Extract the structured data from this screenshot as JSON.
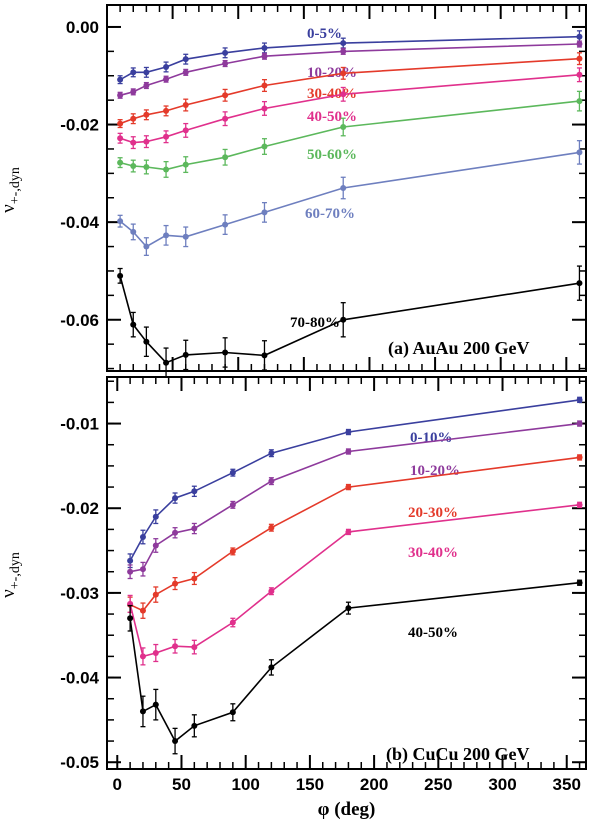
{
  "chart_data": [
    {
      "type": "line",
      "title": "(a)  AuAu 200 GeV",
      "xlabel": "",
      "ylabel": "ν+-,dyn",
      "ylabel_main": "ν",
      "ylabel_sub": "+-,dyn",
      "xlim": [
        0,
        365
      ],
      "ylim": [
        -0.0705,
        0.0045
      ],
      "yticks": [
        0.0,
        -0.02,
        -0.04,
        -0.06
      ],
      "ytick_labels": [
        "0.00",
        "-0.02",
        "-0.04",
        "-0.06"
      ],
      "grid": false,
      "series": [
        {
          "name": "0-5%",
          "color": "#3a3f9e",
          "x": [
            10,
            20,
            30,
            45,
            60,
            90,
            120,
            180,
            360
          ],
          "y": [
            -0.0108,
            -0.0093,
            -0.0093,
            -0.0082,
            -0.0066,
            -0.0053,
            -0.0043,
            -0.0033,
            -0.002
          ],
          "err": [
            0.0008,
            0.0009,
            0.001,
            0.001,
            0.001,
            0.001,
            0.001,
            0.001,
            0.0012
          ]
        },
        {
          "name": "10-20%",
          "color": "#8e3a9c",
          "x": [
            10,
            20,
            30,
            45,
            60,
            90,
            120,
            180,
            360
          ],
          "y": [
            -0.014,
            -0.0133,
            -0.012,
            -0.0107,
            -0.0093,
            -0.0075,
            -0.006,
            -0.005,
            -0.0035
          ],
          "err": [
            0.0006,
            0.0006,
            0.0006,
            0.0006,
            0.0006,
            0.0006,
            0.0006,
            0.0006,
            0.0006
          ]
        },
        {
          "name": "30-40%",
          "color": "#e43a2a",
          "x": [
            10,
            20,
            30,
            45,
            60,
            90,
            120,
            180,
            360
          ],
          "y": [
            -0.0198,
            -0.0188,
            -0.018,
            -0.0172,
            -0.016,
            -0.014,
            -0.012,
            -0.0095,
            -0.0065
          ],
          "err": [
            0.0008,
            0.001,
            0.001,
            0.001,
            0.0012,
            0.0012,
            0.0012,
            0.0012,
            0.0012
          ]
        },
        {
          "name": "40-50%",
          "color": "#e0308c",
          "x": [
            10,
            20,
            30,
            45,
            60,
            90,
            120,
            180,
            360
          ],
          "y": [
            -0.0228,
            -0.0237,
            -0.0235,
            -0.0225,
            -0.0212,
            -0.0188,
            -0.0167,
            -0.0138,
            -0.0098
          ],
          "err": [
            0.001,
            0.0012,
            0.0012,
            0.0012,
            0.0014,
            0.0014,
            0.0014,
            0.0014,
            0.0014
          ]
        },
        {
          "name": "50-60%",
          "color": "#5cb85c",
          "x": [
            10,
            20,
            30,
            45,
            60,
            90,
            120,
            180,
            360
          ],
          "y": [
            -0.0278,
            -0.0285,
            -0.0287,
            -0.0292,
            -0.0282,
            -0.0267,
            -0.0245,
            -0.0205,
            -0.0152
          ],
          "err": [
            0.001,
            0.0012,
            0.0014,
            0.0016,
            0.0016,
            0.0016,
            0.0016,
            0.0018,
            0.002
          ]
        },
        {
          "name": "60-70%",
          "color": "#6e7fbf",
          "x": [
            10,
            20,
            30,
            45,
            60,
            90,
            120,
            180,
            360
          ],
          "y": [
            -0.0398,
            -0.042,
            -0.045,
            -0.0427,
            -0.043,
            -0.0405,
            -0.038,
            -0.033,
            -0.0257
          ],
          "err": [
            0.0012,
            0.0016,
            0.0018,
            0.002,
            0.002,
            0.002,
            0.002,
            0.0022,
            0.0024
          ]
        },
        {
          "name": "70-80%",
          "color": "#000000",
          "x": [
            10,
            20,
            30,
            45,
            60,
            90,
            120,
            180,
            360
          ],
          "y": [
            -0.051,
            -0.061,
            -0.0645,
            -0.0688,
            -0.0672,
            -0.0667,
            -0.0673,
            -0.06,
            -0.0525
          ],
          "err": [
            0.0015,
            0.0025,
            0.003,
            0.003,
            0.003,
            0.003,
            0.003,
            0.0035,
            0.0035
          ]
        }
      ]
    },
    {
      "type": "line",
      "title": "(b)  CuCu 200 GeV",
      "xlabel": "φ (deg)",
      "ylabel": "ν+-,dyn",
      "ylabel_main": "ν",
      "ylabel_sub": "+-,dyn",
      "xlim": [
        -8,
        365
      ],
      "ylim": [
        -0.0508,
        -0.0045
      ],
      "xticks": [
        0,
        50,
        100,
        150,
        200,
        250,
        300,
        350
      ],
      "xtick_labels": [
        "0",
        "50",
        "100",
        "150",
        "200",
        "250",
        "300",
        "350"
      ],
      "yticks": [
        -0.01,
        -0.02,
        -0.03,
        -0.04,
        -0.05
      ],
      "ytick_labels": [
        "-0.01",
        "-0.02",
        "-0.03",
        "-0.04",
        "-0.05"
      ],
      "grid": false,
      "series": [
        {
          "name": "0-10%",
          "color": "#3a3f9e",
          "x": [
            10,
            20,
            30,
            45,
            60,
            90,
            120,
            180,
            360
          ],
          "y": [
            -0.0262,
            -0.0234,
            -0.021,
            -0.0188,
            -0.018,
            -0.0158,
            -0.0135,
            -0.011,
            -0.0072
          ],
          "err": [
            0.0008,
            0.0008,
            0.0008,
            0.0006,
            0.0006,
            0.0004,
            0.0004,
            0.0003,
            0.0003
          ]
        },
        {
          "name": "10-20%",
          "color": "#8e3a9c",
          "x": [
            10,
            20,
            30,
            45,
            60,
            90,
            120,
            180,
            360
          ],
          "y": [
            -0.0275,
            -0.0272,
            -0.0244,
            -0.0229,
            -0.0224,
            -0.0196,
            -0.0168,
            -0.0133,
            -0.01
          ],
          "err": [
            0.0008,
            0.0008,
            0.0008,
            0.0006,
            0.0006,
            0.0004,
            0.0004,
            0.0003,
            0.0003
          ]
        },
        {
          "name": "20-30%",
          "color": "#e43a2a",
          "x": [
            10,
            20,
            30,
            45,
            60,
            90,
            120,
            180,
            360
          ],
          "y": [
            -0.0314,
            -0.0321,
            -0.0302,
            -0.0289,
            -0.0283,
            -0.0251,
            -0.0223,
            -0.0175,
            -0.014
          ],
          "err": [
            0.0009,
            0.0009,
            0.0009,
            0.0007,
            0.0007,
            0.0004,
            0.0004,
            0.0003,
            0.0003
          ]
        },
        {
          "name": "30-40%",
          "color": "#e0308c",
          "x": [
            10,
            20,
            30,
            45,
            60,
            90,
            120,
            180,
            360
          ],
          "y": [
            -0.0313,
            -0.0375,
            -0.0371,
            -0.0363,
            -0.0364,
            -0.0335,
            -0.0298,
            -0.0228,
            -0.0196
          ],
          "err": [
            0.001,
            0.001,
            0.001,
            0.0008,
            0.0008,
            0.0005,
            0.0004,
            0.0003,
            0.0003
          ]
        },
        {
          "name": "40-50%",
          "color": "#000000",
          "x": [
            10,
            20,
            30,
            45,
            60,
            90,
            120,
            180,
            360
          ],
          "y": [
            -0.033,
            -0.044,
            -0.0432,
            -0.0475,
            -0.0457,
            -0.0441,
            -0.0388,
            -0.0318,
            -0.0288
          ],
          "err": [
            0.0015,
            0.0018,
            0.0018,
            0.0015,
            0.0013,
            0.001,
            0.0009,
            0.0007,
            0.0003
          ]
        }
      ]
    }
  ]
}
